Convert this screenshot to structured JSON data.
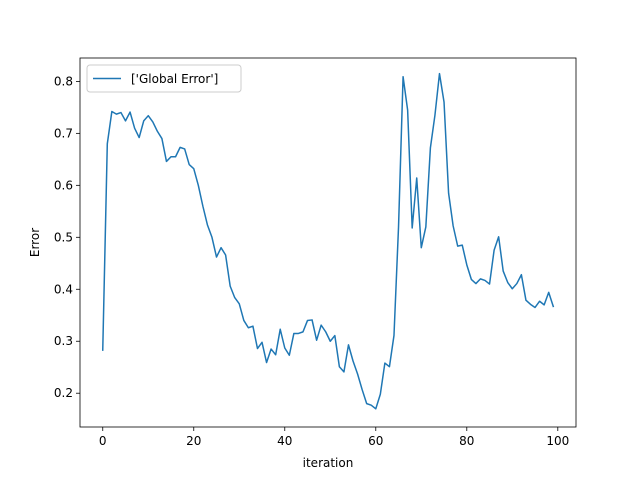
{
  "chart_data": {
    "type": "line",
    "title": "",
    "xlabel": "iteration",
    "ylabel": "Error",
    "xlim": [
      -5,
      104
    ],
    "ylim": [
      0.135,
      0.845
    ],
    "xticks": [
      0,
      20,
      40,
      60,
      80,
      100
    ],
    "yticks": [
      0.2,
      0.3,
      0.4,
      0.5,
      0.6,
      0.7,
      0.8
    ],
    "ytick_labels": [
      "0.2",
      "0.3",
      "0.4",
      "0.5",
      "0.6",
      "0.7",
      "0.8"
    ],
    "grid": false,
    "legend_position": "top-left",
    "series": [
      {
        "name": "['Global Error']",
        "color": "#1f77b4",
        "x": [
          0,
          1,
          2,
          3,
          4,
          5,
          6,
          7,
          8,
          9,
          10,
          11,
          12,
          13,
          14,
          15,
          16,
          17,
          18,
          19,
          20,
          21,
          22,
          23,
          24,
          25,
          26,
          27,
          28,
          29,
          30,
          31,
          32,
          33,
          34,
          35,
          36,
          37,
          38,
          39,
          40,
          41,
          42,
          43,
          44,
          45,
          46,
          47,
          48,
          49,
          50,
          51,
          52,
          53,
          54,
          55,
          56,
          57,
          58,
          59,
          60,
          61,
          62,
          63,
          64,
          65,
          66,
          67,
          68,
          69,
          70,
          71,
          72,
          73,
          74,
          75,
          76,
          77,
          78,
          79,
          80,
          81,
          82,
          83,
          84,
          85,
          86,
          87,
          88,
          89,
          90,
          91,
          92,
          93,
          94,
          95,
          96,
          97,
          98,
          99
        ],
        "y": [
          0.283,
          0.68,
          0.742,
          0.737,
          0.74,
          0.724,
          0.741,
          0.71,
          0.692,
          0.724,
          0.734,
          0.722,
          0.704,
          0.69,
          0.646,
          0.655,
          0.655,
          0.673,
          0.67,
          0.64,
          0.632,
          0.6,
          0.56,
          0.524,
          0.5,
          0.462,
          0.48,
          0.466,
          0.406,
          0.384,
          0.372,
          0.34,
          0.326,
          0.329,
          0.286,
          0.298,
          0.259,
          0.285,
          0.274,
          0.323,
          0.287,
          0.273,
          0.315,
          0.315,
          0.318,
          0.34,
          0.341,
          0.302,
          0.331,
          0.318,
          0.3,
          0.311,
          0.251,
          0.241,
          0.293,
          0.262,
          0.237,
          0.207,
          0.18,
          0.177,
          0.17,
          0.198,
          0.258,
          0.251,
          0.311,
          0.52,
          0.809,
          0.745,
          0.518,
          0.614,
          0.48,
          0.52,
          0.672,
          0.735,
          0.815,
          0.76,
          0.585,
          0.522,
          0.483,
          0.485,
          0.447,
          0.419,
          0.411,
          0.42,
          0.417,
          0.41,
          0.475,
          0.501,
          0.435,
          0.413,
          0.401,
          0.411,
          0.428,
          0.379,
          0.371,
          0.365,
          0.377,
          0.37,
          0.394,
          0.367
        ]
      }
    ]
  }
}
